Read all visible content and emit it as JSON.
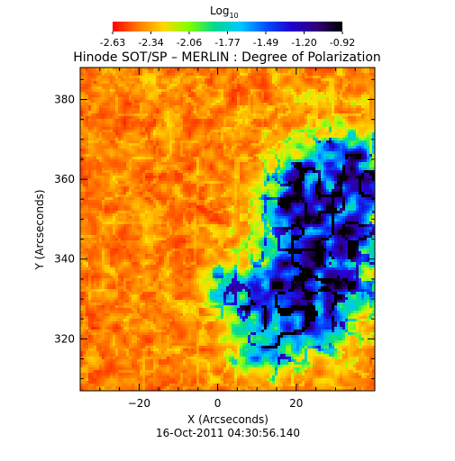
{
  "colorbar": {
    "title_main": "Log",
    "title_sub": "10",
    "tick_labels": [
      "-2.63",
      "-2.34",
      "-2.06",
      "-1.77",
      "-1.49",
      "-1.20",
      "-0.92"
    ],
    "range": [
      -2.63,
      -0.92
    ],
    "colors": [
      "#ff0000",
      "#ff7a00",
      "#ffd800",
      "#7fff00",
      "#00d890",
      "#00c8ff",
      "#0050ff",
      "#2000d0",
      "#30007a",
      "#000000"
    ]
  },
  "chart_data": {
    "type": "heatmap",
    "title": "Hinode SOT/SP – MERLIN : Degree of Polarization",
    "xlabel": "X (Arcseconds)",
    "ylabel": "Y (Arcseconds)",
    "xlim": [
      -35,
      40
    ],
    "ylim": [
      307,
      388
    ],
    "xticks": [
      -20,
      0,
      20
    ],
    "yticks": [
      320,
      340,
      360,
      380
    ],
    "xtick_labels": [
      "−20",
      "0",
      "20"
    ],
    "ytick_labels": [
      "320",
      "340",
      "360",
      "380"
    ],
    "value_scale": "log10",
    "value_range": [
      -2.63,
      -0.92
    ],
    "description_of_field": "granular degree-of-polarization map; low values (red/orange) dominate the left half, high values (blue/purple/black) concentrated in a region on the right between roughly x=0..40, y=310..370"
  },
  "footer": {
    "timestamp": "16-Oct-2011 04:30:56.140"
  }
}
